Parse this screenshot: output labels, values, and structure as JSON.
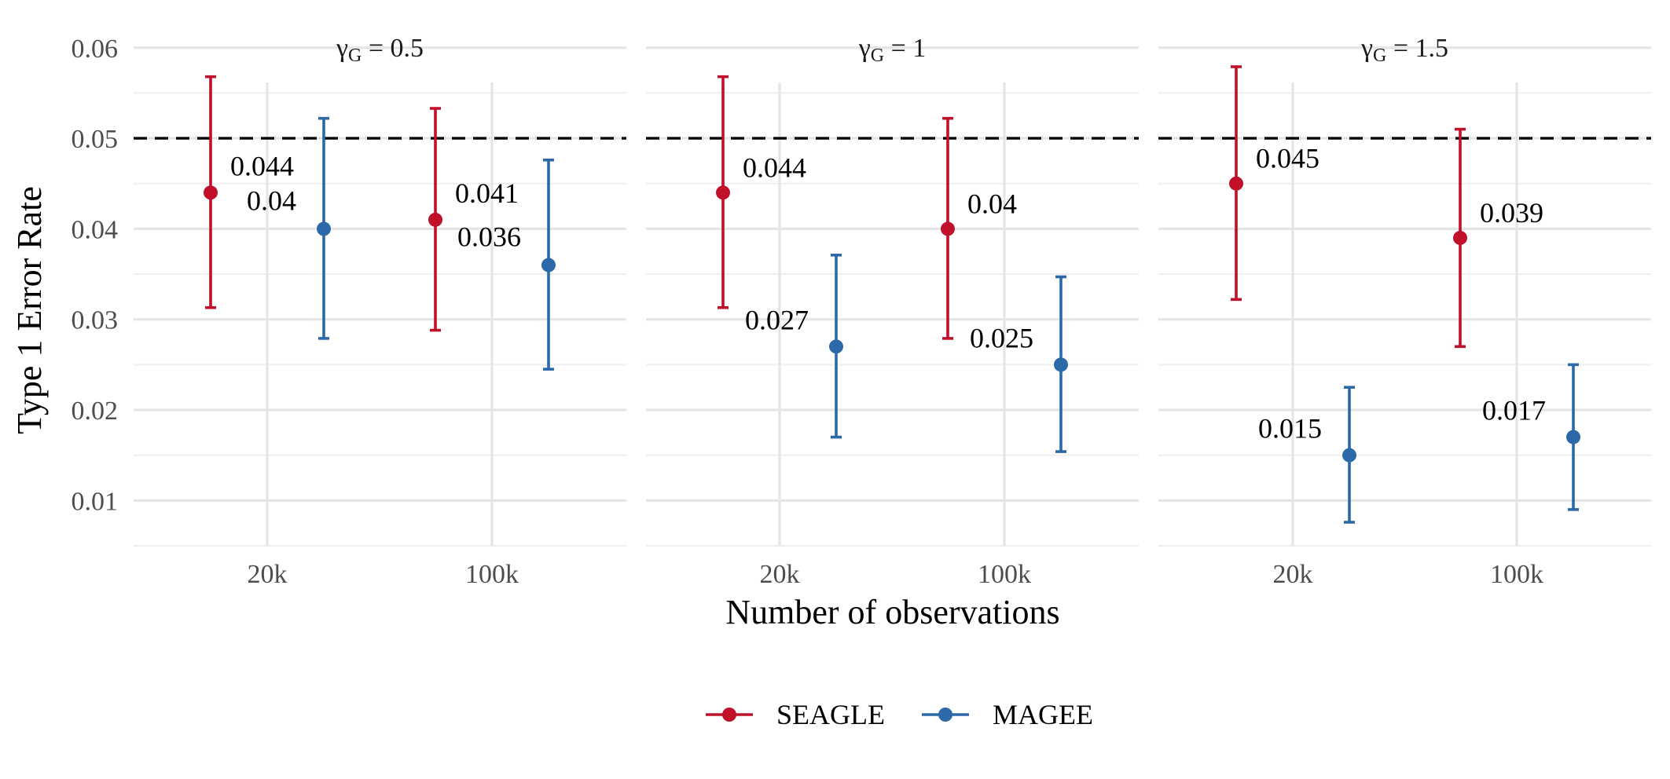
{
  "chart_data": {
    "type": "scatter",
    "subtype": "point-with-errorbars, faceted",
    "ylabel": "Type 1 Error Rate",
    "xlabel": "Number of observations",
    "ylim": [
      0.005,
      0.0605
    ],
    "y_ticks": [
      0.01,
      0.02,
      0.03,
      0.04,
      0.05,
      0.06
    ],
    "y_tick_labels": [
      "0.01",
      "0.02",
      "0.03",
      "0.04",
      "0.05",
      "0.06"
    ],
    "categories": [
      "20k",
      "100k"
    ],
    "reference_line": {
      "y": 0.05,
      "style": "dashed",
      "color": "#000000"
    },
    "legend": {
      "position": "bottom",
      "entries": [
        {
          "name": "SEAGLE",
          "color": "#C0102A"
        },
        {
          "name": "MAGEE",
          "color": "#2B69A8"
        }
      ]
    },
    "facets": [
      {
        "strip": {
          "symbol": "γ",
          "subscript": "G",
          "rest": " = 0.5"
        },
        "series": [
          {
            "name": "SEAGLE",
            "points": [
              {
                "x": "20k",
                "y": 0.044,
                "ymin": 0.0313,
                "ymax": 0.0568,
                "label": "0.044"
              },
              {
                "x": "100k",
                "y": 0.041,
                "ymin": 0.0288,
                "ymax": 0.0533,
                "label": "0.041"
              }
            ]
          },
          {
            "name": "MAGEE",
            "points": [
              {
                "x": "20k",
                "y": 0.04,
                "ymin": 0.0279,
                "ymax": 0.0522,
                "label": "0.04"
              },
              {
                "x": "100k",
                "y": 0.036,
                "ymin": 0.0245,
                "ymax": 0.0476,
                "label": "0.036"
              }
            ]
          }
        ]
      },
      {
        "strip": {
          "symbol": "γ",
          "subscript": "G",
          "rest": " = 1"
        },
        "series": [
          {
            "name": "SEAGLE",
            "points": [
              {
                "x": "20k",
                "y": 0.044,
                "ymin": 0.0313,
                "ymax": 0.0568,
                "label": "0.044"
              },
              {
                "x": "100k",
                "y": 0.04,
                "ymin": 0.0279,
                "ymax": 0.0522,
                "label": "0.04"
              }
            ]
          },
          {
            "name": "MAGEE",
            "points": [
              {
                "x": "20k",
                "y": 0.027,
                "ymin": 0.017,
                "ymax": 0.0371,
                "label": "0.027"
              },
              {
                "x": "100k",
                "y": 0.025,
                "ymin": 0.0154,
                "ymax": 0.0347,
                "label": "0.025"
              }
            ]
          }
        ]
      },
      {
        "strip": {
          "symbol": "γ",
          "subscript": "G",
          "rest": " = 1.5"
        },
        "series": [
          {
            "name": "SEAGLE",
            "points": [
              {
                "x": "20k",
                "y": 0.045,
                "ymin": 0.0322,
                "ymax": 0.0579,
                "label": "0.045"
              },
              {
                "x": "100k",
                "y": 0.039,
                "ymin": 0.027,
                "ymax": 0.051,
                "label": "0.039"
              }
            ]
          },
          {
            "name": "MAGEE",
            "points": [
              {
                "x": "20k",
                "y": 0.015,
                "ymin": 0.0076,
                "ymax": 0.0225,
                "label": "0.015"
              },
              {
                "x": "100k",
                "y": 0.017,
                "ymin": 0.009,
                "ymax": 0.025,
                "label": "0.017"
              }
            ]
          }
        ]
      }
    ]
  }
}
